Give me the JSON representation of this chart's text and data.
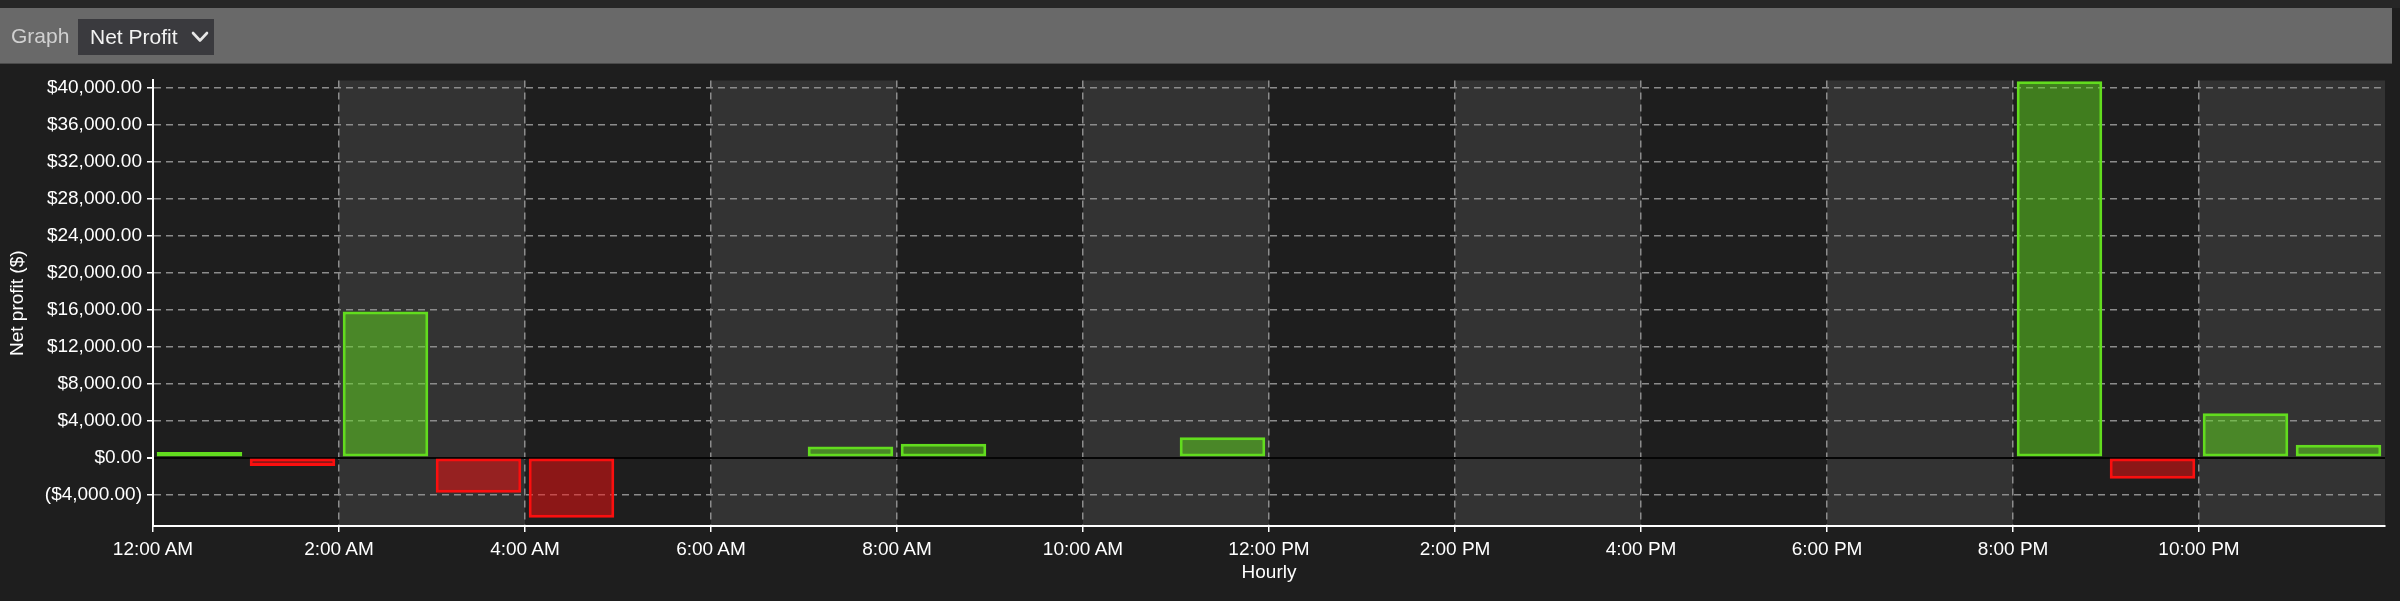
{
  "chart_data": {
    "type": "bar",
    "annotations": [
      "Graph",
      "Net Profit"
    ],
    "xlabel": "Hourly",
    "ylabel": "Net profit ($)",
    "x": [
      0.5,
      1.5,
      2.5,
      3.5,
      4.5,
      7.5,
      8.5,
      11.5,
      20.5,
      21.5,
      22.5,
      23.5
    ],
    "values": [
      600,
      -900,
      15800,
      -3800,
      -6500,
      1200,
      1500,
      2200,
      40700,
      -2300,
      4800,
      1400
    ],
    "colors": [
      "#62dc1e",
      "#fa0f0f",
      "#62dc1e",
      "#fa0f0f",
      "#fa0f0f",
      "#62dc1e",
      "#62dc1e",
      "#62dc1e",
      "#62dc1e",
      "#fa0f0f",
      "#62dc1e",
      "#62dc1e"
    ],
    "xlim": [
      0,
      24
    ],
    "xticks": [
      {
        "value": 0,
        "label": "12:00 AM"
      },
      {
        "value": 2,
        "label": "2:00 AM"
      },
      {
        "value": 4,
        "label": "4:00 AM"
      },
      {
        "value": 6,
        "label": "6:00 AM"
      },
      {
        "value": 8,
        "label": "8:00 AM"
      },
      {
        "value": 10,
        "label": "10:00 AM"
      },
      {
        "value": 12,
        "label": "12:00 PM"
      },
      {
        "value": 14,
        "label": "2:00 PM"
      },
      {
        "value": 16,
        "label": "4:00 PM"
      },
      {
        "value": 18,
        "label": "6:00 PM"
      },
      {
        "value": 20,
        "label": "8:00 PM"
      },
      {
        "value": 22,
        "label": "10:00 PM"
      }
    ],
    "ylim": [
      -7400,
      40800
    ],
    "yticks": [
      {
        "value": -4000,
        "label": "($4,000.00)"
      },
      {
        "value": 0,
        "label": "$0.00"
      },
      {
        "value": 4000,
        "label": "$4,000.00"
      },
      {
        "value": 8000,
        "label": "$8,000.00"
      },
      {
        "value": 12000,
        "label": "$12,000.00"
      },
      {
        "value": 16000,
        "label": "$16,000.00"
      },
      {
        "value": 20000,
        "label": "$20,000.00"
      },
      {
        "value": 24000,
        "label": "$24,000.00"
      },
      {
        "value": 28000,
        "label": "$28,000.00"
      },
      {
        "value": 32000,
        "label": "$32,000.00"
      },
      {
        "value": 36000,
        "label": "$36,000.00"
      },
      {
        "value": 40000,
        "label": "$40,000.00"
      }
    ],
    "grid": true,
    "bands": [
      {
        "axis": "x",
        "from": 2,
        "to": 4,
        "color": "#333333"
      },
      {
        "axis": "x",
        "from": 6,
        "to": 8,
        "color": "#333333"
      },
      {
        "axis": "x",
        "from": 10,
        "to": 12,
        "color": "#333333"
      },
      {
        "axis": "x",
        "from": 14,
        "to": 16,
        "color": "#333333"
      },
      {
        "axis": "x",
        "from": 18,
        "to": 20,
        "color": "#333333"
      },
      {
        "axis": "x",
        "from": 22,
        "to": 24,
        "color": "#333333"
      }
    ]
  }
}
